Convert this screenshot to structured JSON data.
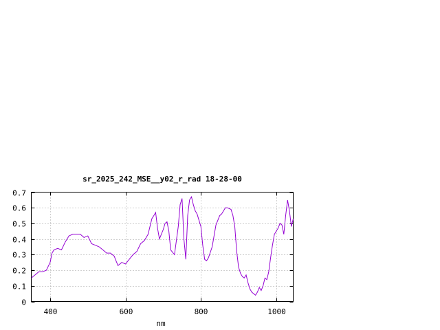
{
  "chart_data": {
    "type": "line",
    "title": "sr_2025_242_MSE__y02_r_rad 18-28-00",
    "xlabel": "nm",
    "ylabel": "",
    "xlim": [
      350,
      1045
    ],
    "ylim": [
      0,
      0.7
    ],
    "xticks": [
      400,
      600,
      800,
      1000
    ],
    "yticks": [
      0,
      0.1,
      0.2,
      0.3,
      0.4,
      0.5,
      0.6,
      0.7
    ],
    "ytick_labels": [
      "0",
      "0.1",
      "0.2",
      "0.3",
      "0.4",
      "0.5",
      "0.6",
      "0.7"
    ],
    "grid": true,
    "line_color": "#9400d3",
    "series": [
      {
        "x": [
          350,
          360,
          370,
          380,
          390,
          400,
          405,
          410,
          420,
          430,
          440,
          450,
          460,
          470,
          480,
          490,
          500,
          510,
          520,
          530,
          540,
          550,
          560,
          570,
          575,
          580,
          590,
          600,
          610,
          620,
          630,
          640,
          650,
          660,
          670,
          675,
          680,
          685,
          690,
          700,
          705,
          710,
          715,
          720,
          730,
          740,
          745,
          750,
          755,
          760,
          765,
          770,
          775,
          780,
          785,
          790,
          800,
          805,
          810,
          815,
          820,
          830,
          840,
          850,
          855,
          860,
          865,
          870,
          880,
          885,
          890,
          895,
          900,
          905,
          910,
          915,
          920,
          925,
          930,
          935,
          940,
          945,
          950,
          955,
          960,
          965,
          970,
          975,
          980,
          985,
          990,
          995,
          1000,
          1005,
          1010,
          1015,
          1020,
          1025,
          1030,
          1035,
          1040,
          1045
        ],
        "y": [
          0.15,
          0.17,
          0.19,
          0.19,
          0.2,
          0.25,
          0.31,
          0.33,
          0.34,
          0.33,
          0.38,
          0.42,
          0.43,
          0.43,
          0.43,
          0.41,
          0.42,
          0.37,
          0.36,
          0.35,
          0.33,
          0.31,
          0.31,
          0.29,
          0.26,
          0.23,
          0.25,
          0.24,
          0.27,
          0.3,
          0.32,
          0.37,
          0.39,
          0.43,
          0.53,
          0.55,
          0.57,
          0.47,
          0.4,
          0.46,
          0.5,
          0.51,
          0.45,
          0.33,
          0.3,
          0.48,
          0.62,
          0.66,
          0.4,
          0.27,
          0.55,
          0.65,
          0.67,
          0.62,
          0.58,
          0.56,
          0.48,
          0.36,
          0.27,
          0.26,
          0.28,
          0.35,
          0.49,
          0.55,
          0.56,
          0.58,
          0.6,
          0.6,
          0.59,
          0.55,
          0.48,
          0.32,
          0.22,
          0.18,
          0.16,
          0.15,
          0.17,
          0.12,
          0.08,
          0.06,
          0.05,
          0.04,
          0.06,
          0.09,
          0.07,
          0.1,
          0.15,
          0.14,
          0.19,
          0.28,
          0.36,
          0.43,
          0.45,
          0.47,
          0.5,
          0.49,
          0.43,
          0.55,
          0.65,
          0.58,
          0.48,
          0.53
        ]
      }
    ]
  }
}
